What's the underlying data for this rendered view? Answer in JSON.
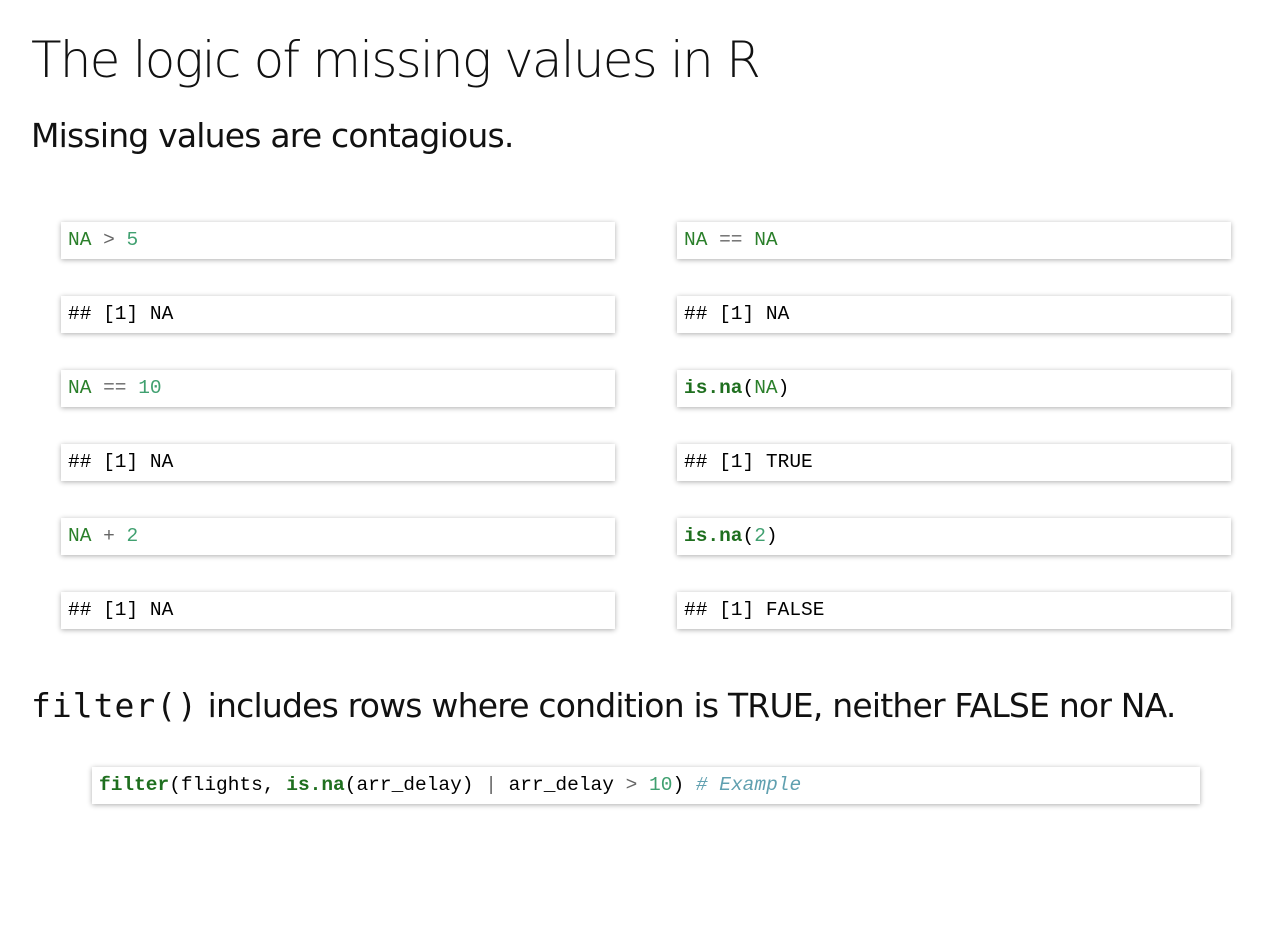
{
  "slide": {
    "title": "The logic of missing values in R",
    "subtitle": "Missing values are contagious."
  },
  "left_column": {
    "c1": {
      "a": "NA",
      "op": " > ",
      "b": "5"
    },
    "o1": "## [1] NA",
    "c2": {
      "a": "NA",
      "op": " == ",
      "b": "10"
    },
    "o2": "## [1] NA",
    "c3": {
      "a": "NA",
      "op": " + ",
      "b": "2"
    },
    "o3": "## [1] NA"
  },
  "right_column": {
    "c1": {
      "a": "NA",
      "op": " == ",
      "b": "NA"
    },
    "o1": "## [1] NA",
    "c2": {
      "fn": "is.na",
      "open": "(",
      "arg": "NA",
      "close": ")"
    },
    "o2": "## [1] TRUE",
    "c3": {
      "fn": "is.na",
      "open": "(",
      "arg": "2",
      "close": ")"
    },
    "o3": "## [1] FALSE"
  },
  "statement": {
    "code": "filter()",
    "text": " includes rows where condition is TRUE, neither FALSE nor NA."
  },
  "example": {
    "fn1": "filter",
    "part1": "(flights, ",
    "fn2": "is.na",
    "part2": "(arr_delay) ",
    "pipe": "|",
    "part3": " arr_delay ",
    "gt": ">",
    "sp": " ",
    "num": "10",
    "close": ")",
    "sp2": " ",
    "comment": "# Example"
  },
  "colors": {
    "literal": "#2a7f2a",
    "number": "#40a070",
    "operator": "#666666",
    "comment": "#60a0b0"
  }
}
